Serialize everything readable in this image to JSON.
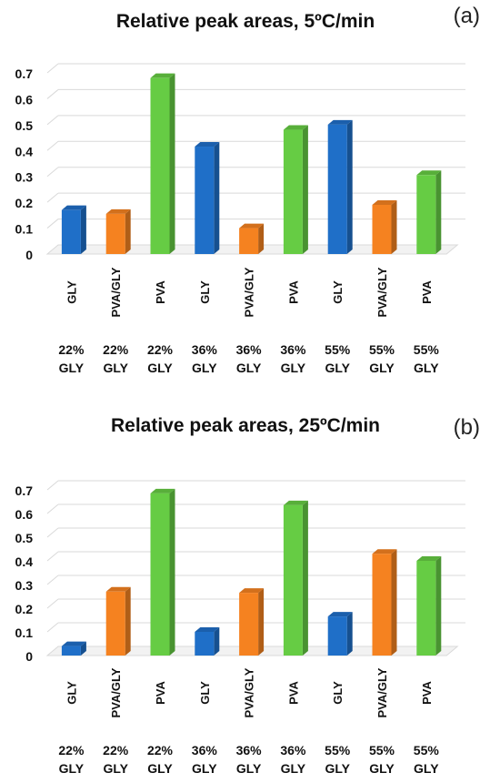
{
  "chart_data": [
    {
      "type": "bar",
      "title": "Relative peak areas, 5ºC/min",
      "panel_label": "(a)",
      "categories": [
        "GLY",
        "PVA/GLY",
        "PVA",
        "GLY",
        "PVA/GLY",
        "PVA",
        "GLY",
        "PVA/GLY",
        "PVA"
      ],
      "groups": [
        "22%\nGLY",
        "22%\nGLY",
        "22%\nGLY",
        "36%\nGLY",
        "36%\nGLY",
        "36%\nGLY",
        "55%\nGLY",
        "55%\nGLY",
        "55%\nGLY"
      ],
      "values": [
        0.17,
        0.155,
        0.68,
        0.415,
        0.1,
        0.48,
        0.5,
        0.19,
        0.305
      ],
      "bar_colors": [
        "#1f6fc8",
        "#f58220",
        "#66cc44",
        "#1f6fc8",
        "#f58220",
        "#66cc44",
        "#1f6fc8",
        "#f58220",
        "#66cc44"
      ],
      "y_ticks": [
        "0",
        "0.1",
        "0.2",
        "0.3",
        "0.4",
        "0.5",
        "0.6",
        "0.7"
      ],
      "ylim": [
        0,
        0.7
      ],
      "grid": true,
      "xlabel": "",
      "ylabel": ""
    },
    {
      "type": "bar",
      "title": "Relative peak areas, 25ºC/min",
      "panel_label": "(b)",
      "categories": [
        "GLY",
        "PVA/GLY",
        "PVA",
        "GLY",
        "PVA/GLY",
        "PVA",
        "GLY",
        "PVA/GLY",
        "PVA"
      ],
      "groups": [
        "22%\nGLY",
        "22%\nGLY",
        "22%\nGLY",
        "36%\nGLY",
        "36%\nGLY",
        "36%\nGLY",
        "55%\nGLY",
        "55%\nGLY",
        "55%\nGLY"
      ],
      "values": [
        0.04,
        0.27,
        0.685,
        0.1,
        0.265,
        0.635,
        0.165,
        0.43,
        0.4
      ],
      "bar_colors": [
        "#1f6fc8",
        "#f58220",
        "#66cc44",
        "#1f6fc8",
        "#f58220",
        "#66cc44",
        "#1f6fc8",
        "#f58220",
        "#66cc44"
      ],
      "y_ticks": [
        "0",
        "0.1",
        "0.2",
        "0.3",
        "0.4",
        "0.5",
        "0.6",
        "0.7"
      ],
      "ylim": [
        0,
        0.7
      ],
      "grid": true,
      "xlabel": "",
      "ylabel": ""
    }
  ]
}
